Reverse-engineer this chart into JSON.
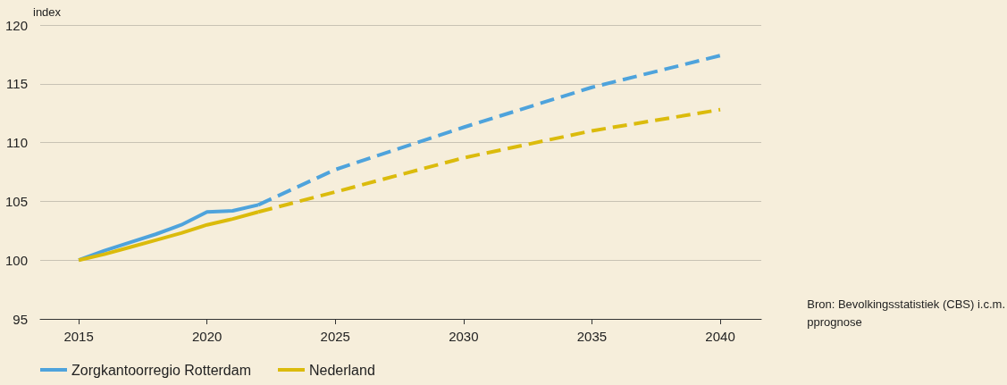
{
  "chart_data": {
    "type": "line",
    "ylabel": "index",
    "xlim": [
      2013.5,
      2041.6
    ],
    "xticks": [
      2015,
      2020,
      2025,
      2030,
      2035,
      2040
    ],
    "ylim": [
      95,
      120
    ],
    "yticks": [
      95,
      100,
      105,
      110,
      115,
      120
    ],
    "grid": "y",
    "legend": "bottom left",
    "marker": "none",
    "annotations": [
      "Bron: Bevolkingsstatistiek (CBS) i.c.m.\npprognose"
    ],
    "series": [
      {
        "name": "Zorgkantoorregio Rotterdam",
        "color": "#4ea3dc",
        "line_style": "solid",
        "x": [
          2015,
          2016,
          2017,
          2018,
          2019,
          2020,
          2021,
          2022
        ],
        "values": [
          100,
          100.8,
          101.5,
          102.2,
          103,
          104.1,
          104.2,
          104.7
        ]
      },
      {
        "name": "Nederland",
        "color": "#dbbb0c",
        "line_style": "solid",
        "x": [
          2015,
          2016,
          2017,
          2018,
          2019,
          2020,
          2021,
          2022
        ],
        "values": [
          100,
          100.5,
          101.1,
          101.7,
          102.3,
          103,
          103.5,
          104.1
        ]
      },
      {
        "color": "#4ea3dc",
        "line_style": "dashed",
        "x": [
          2022,
          2025,
          2030,
          2035,
          2040
        ],
        "values": [
          104.7,
          107.7,
          111.3,
          114.7,
          117.4
        ]
      },
      {
        "color": "#dbbb0c",
        "line_style": "dashed",
        "x": [
          2022,
          2025,
          2030,
          2035,
          2040
        ],
        "values": [
          104.1,
          105.8,
          108.7,
          111.0,
          112.8
        ]
      }
    ]
  }
}
